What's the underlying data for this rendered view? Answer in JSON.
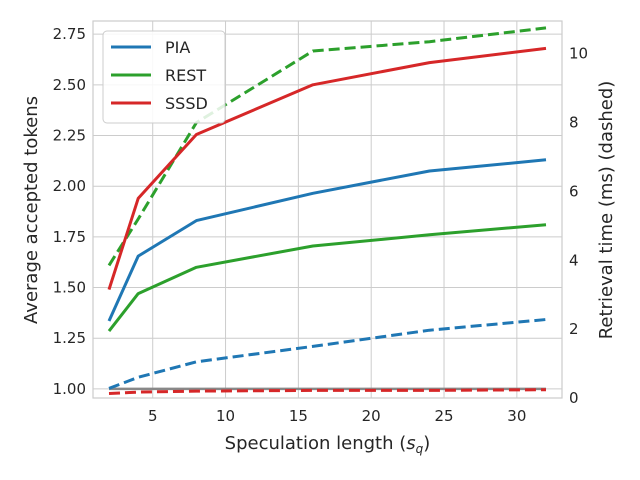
{
  "chart_data": {
    "type": "line",
    "xlabel_main": "Speculation length (",
    "xlabel_var": "s",
    "xlabel_sub": "q",
    "xlabel_close": ")",
    "ylabel": "Average accepted tokens",
    "y2label": "Retrieval time (ms) (dashed)",
    "xlim": [
      0.9,
      33.1
    ],
    "ylim": [
      0.955,
      2.815
    ],
    "y2lim": [
      0,
      10.95
    ],
    "x_ticks": [
      5,
      10,
      15,
      20,
      25,
      30
    ],
    "x_tick_labels": [
      "5",
      "10",
      "15",
      "20",
      "25",
      "30"
    ],
    "y_ticks": [
      1.0,
      1.25,
      1.5,
      1.75,
      2.0,
      2.25,
      2.5,
      2.75
    ],
    "y_tick_labels": [
      "1.00",
      "1.25",
      "1.50",
      "1.75",
      "2.00",
      "2.25",
      "2.50",
      "2.75"
    ],
    "y2_ticks": [
      0,
      2,
      4,
      6,
      8,
      10
    ],
    "y2_tick_labels": [
      "0",
      "2",
      "4",
      "6",
      "8",
      "10"
    ],
    "grid": true,
    "legend_position": "top-left",
    "x": [
      2,
      4,
      8,
      16,
      24,
      32
    ],
    "series": [
      {
        "name": "PIA",
        "color": "#1f77b4",
        "tokens": [
          1.335,
          1.655,
          1.83,
          1.965,
          2.075,
          2.13
        ],
        "retrieval_ms": [
          0.28,
          0.6,
          1.05,
          1.5,
          1.97,
          2.28
        ]
      },
      {
        "name": "REST",
        "color": "#2ca02c",
        "tokens": [
          1.285,
          1.47,
          1.6,
          1.705,
          1.76,
          1.81
        ],
        "retrieval_ms": [
          3.85,
          5.2,
          8.0,
          10.08,
          10.35,
          10.75
        ]
      },
      {
        "name": "SSSD",
        "color": "#d62728",
        "tokens": [
          1.49,
          1.94,
          2.255,
          2.5,
          2.61,
          2.68
        ],
        "retrieval_ms": [
          0.13,
          0.17,
          0.2,
          0.22,
          0.22,
          0.24
        ]
      }
    ],
    "reference_line": {
      "name": "baseline",
      "y": 1.0,
      "color": "#888888"
    }
  }
}
